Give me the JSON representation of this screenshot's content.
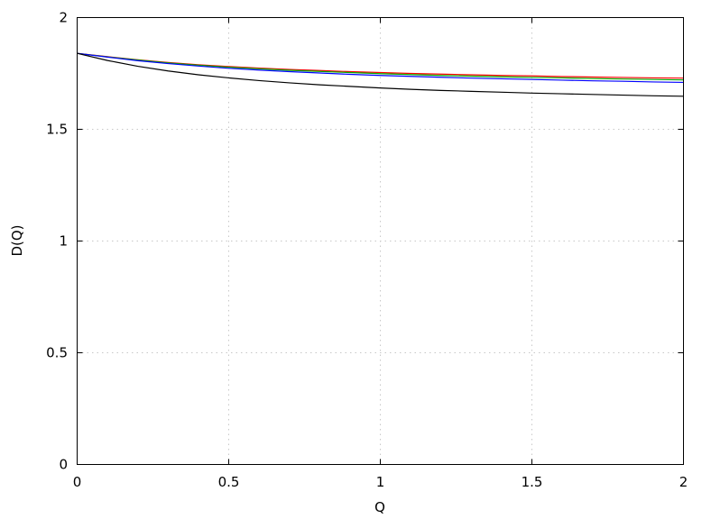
{
  "chart_data": {
    "type": "line",
    "title": "",
    "xlabel": "Q",
    "ylabel": "D(Q)",
    "xlim": [
      0,
      2
    ],
    "ylim": [
      0,
      2
    ],
    "grid": true,
    "x_ticks": [
      {
        "value": 0,
        "label": "0"
      },
      {
        "value": 0.5,
        "label": "0.5"
      },
      {
        "value": 1,
        "label": "1"
      },
      {
        "value": 1.5,
        "label": "1.5"
      },
      {
        "value": 2,
        "label": "2"
      }
    ],
    "y_ticks": [
      {
        "value": 0,
        "label": "0"
      },
      {
        "value": 0.5,
        "label": "0.5"
      },
      {
        "value": 1,
        "label": "1"
      },
      {
        "value": 1.5,
        "label": "1.5"
      },
      {
        "value": 2,
        "label": "2"
      }
    ],
    "x": [
      0,
      0.1,
      0.2,
      0.3,
      0.4,
      0.5,
      0.6,
      0.7,
      0.8,
      0.9,
      1.0,
      1.1,
      1.2,
      1.3,
      1.4,
      1.5,
      1.6,
      1.7,
      1.8,
      1.9,
      2.0
    ],
    "series": [
      {
        "color": "#ff0000",
        "values": [
          1.84,
          1.825,
          1.811,
          1.799,
          1.789,
          1.781,
          1.774,
          1.768,
          1.763,
          1.758,
          1.754,
          1.75,
          1.747,
          1.744,
          1.741,
          1.739,
          1.736,
          1.734,
          1.732,
          1.73,
          1.729
        ]
      },
      {
        "color": "#00aa00",
        "values": [
          1.84,
          1.824,
          1.81,
          1.797,
          1.787,
          1.778,
          1.771,
          1.764,
          1.759,
          1.754,
          1.749,
          1.745,
          1.741,
          1.738,
          1.735,
          1.732,
          1.73,
          1.727,
          1.725,
          1.723,
          1.721
        ]
      },
      {
        "color": "#0000ff",
        "values": [
          1.84,
          1.823,
          1.807,
          1.794,
          1.783,
          1.773,
          1.765,
          1.758,
          1.752,
          1.746,
          1.741,
          1.737,
          1.733,
          1.729,
          1.726,
          1.723,
          1.72,
          1.717,
          1.715,
          1.712,
          1.71
        ]
      },
      {
        "color": "#000000",
        "values": [
          1.84,
          1.808,
          1.782,
          1.761,
          1.744,
          1.73,
          1.718,
          1.708,
          1.699,
          1.692,
          1.685,
          1.679,
          1.674,
          1.67,
          1.666,
          1.662,
          1.659,
          1.656,
          1.653,
          1.65,
          1.648
        ]
      }
    ]
  }
}
